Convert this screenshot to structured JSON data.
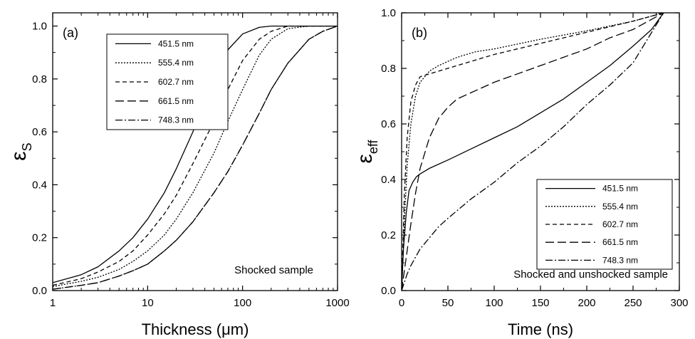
{
  "chart_data": [
    {
      "type": "line",
      "panel_label": "(a)",
      "xlabel": "Thickness (μm)",
      "ylabel": "ε",
      "ylabel_sub": "S",
      "xscale": "log",
      "xlim": [
        1,
        1000
      ],
      "ylim": [
        0.0,
        1.05
      ],
      "xticks": [
        1,
        10,
        100,
        1000
      ],
      "xtick_labels": [
        "1",
        "10",
        "100",
        "1000"
      ],
      "yticks": [
        0.0,
        0.2,
        0.4,
        0.6,
        0.8,
        1.0
      ],
      "ytick_labels": [
        "0.0",
        "0.2",
        "0.4",
        "0.6",
        "0.8",
        "1.0"
      ],
      "annotation": "Shocked sample",
      "legend_position": "top-left",
      "grid": false,
      "series": [
        {
          "name": "451.5 nm",
          "dash": "",
          "x": [
            1,
            2,
            3,
            5,
            7,
            10,
            15,
            20,
            30,
            40,
            50,
            70,
            100,
            150,
            200,
            300,
            500,
            1000
          ],
          "y": [
            0.03,
            0.06,
            0.09,
            0.15,
            0.2,
            0.27,
            0.37,
            0.46,
            0.6,
            0.72,
            0.8,
            0.91,
            0.97,
            0.995,
            1.0,
            1.0,
            1.0,
            1.0
          ]
        },
        {
          "name": "555.4 nm",
          "dash": "2,2",
          "x": [
            1,
            2,
            3,
            5,
            7,
            10,
            15,
            20,
            30,
            50,
            70,
            100,
            150,
            200,
            300,
            500,
            1000
          ],
          "y": [
            0.015,
            0.035,
            0.05,
            0.08,
            0.11,
            0.15,
            0.21,
            0.27,
            0.37,
            0.52,
            0.64,
            0.76,
            0.89,
            0.95,
            0.99,
            1.0,
            1.0
          ]
        },
        {
          "name": "602.7 nm",
          "dash": "6,4",
          "x": [
            1,
            2,
            3,
            5,
            7,
            10,
            15,
            20,
            30,
            50,
            70,
            100,
            150,
            200,
            300,
            500,
            1000
          ],
          "y": [
            0.02,
            0.045,
            0.07,
            0.11,
            0.15,
            0.21,
            0.29,
            0.36,
            0.48,
            0.64,
            0.76,
            0.87,
            0.95,
            0.98,
            1.0,
            1.0,
            1.0
          ]
        },
        {
          "name": "661.5 nm",
          "dash": "12,5",
          "x": [
            1,
            2,
            3,
            5,
            7,
            10,
            15,
            20,
            30,
            50,
            70,
            100,
            150,
            200,
            300,
            500,
            700,
            1000
          ],
          "y": [
            0.005,
            0.02,
            0.03,
            0.055,
            0.075,
            0.1,
            0.15,
            0.19,
            0.26,
            0.37,
            0.45,
            0.55,
            0.67,
            0.76,
            0.86,
            0.95,
            0.98,
            1.0
          ]
        },
        {
          "name": "748.3 nm",
          "dash": "10,3,2,3",
          "x": [
            1,
            2,
            3,
            5,
            7,
            10,
            15,
            20,
            30,
            50,
            70,
            100,
            150,
            200,
            300,
            500,
            700,
            1000
          ],
          "y": [
            0.005,
            0.02,
            0.03,
            0.055,
            0.075,
            0.1,
            0.15,
            0.19,
            0.26,
            0.37,
            0.45,
            0.55,
            0.67,
            0.76,
            0.86,
            0.95,
            0.98,
            1.0
          ]
        }
      ]
    },
    {
      "type": "line",
      "panel_label": "(b)",
      "xlabel": "Time (ns)",
      "ylabel": "ε",
      "ylabel_sub": "eff",
      "xscale": "linear",
      "xlim": [
        0,
        300
      ],
      "ylim": [
        0.0,
        1.0
      ],
      "xticks": [
        0,
        50,
        100,
        150,
        200,
        250,
        300
      ],
      "xtick_labels": [
        "0",
        "50",
        "100",
        "150",
        "200",
        "250",
        "300"
      ],
      "yticks": [
        0.0,
        0.2,
        0.4,
        0.6,
        0.8,
        1.0
      ],
      "ytick_labels": [
        "0.0",
        "0.2",
        "0.4",
        "0.6",
        "0.8",
        "1.0"
      ],
      "annotation": "Shocked and unshocked sample",
      "legend_position": "bottom-right",
      "grid": false,
      "series": [
        {
          "name": "451.5 nm",
          "dash": "",
          "x": [
            0,
            2,
            5,
            8,
            12,
            16,
            20,
            30,
            50,
            75,
            100,
            125,
            150,
            175,
            200,
            225,
            250,
            270,
            283
          ],
          "y": [
            0.0,
            0.15,
            0.28,
            0.36,
            0.39,
            0.41,
            0.42,
            0.44,
            0.47,
            0.51,
            0.55,
            0.59,
            0.64,
            0.69,
            0.75,
            0.81,
            0.88,
            0.94,
            1.0
          ]
        },
        {
          "name": "555.4 nm",
          "dash": "2,2",
          "x": [
            0,
            3,
            6,
            10,
            15,
            20,
            30,
            40,
            60,
            80,
            100,
            150,
            200,
            250,
            283
          ],
          "y": [
            0.0,
            0.25,
            0.45,
            0.6,
            0.7,
            0.75,
            0.79,
            0.81,
            0.84,
            0.86,
            0.87,
            0.905,
            0.935,
            0.97,
            1.0
          ]
        },
        {
          "name": "602.7 nm",
          "dash": "6,4",
          "x": [
            0,
            3,
            6,
            10,
            15,
            20,
            30,
            40,
            60,
            80,
            100,
            150,
            200,
            250,
            283
          ],
          "y": [
            0.0,
            0.35,
            0.55,
            0.68,
            0.74,
            0.77,
            0.78,
            0.79,
            0.81,
            0.83,
            0.85,
            0.89,
            0.93,
            0.97,
            1.0
          ]
        },
        {
          "name": "661.5 nm",
          "dash": "12,5",
          "x": [
            0,
            5,
            10,
            15,
            20,
            30,
            40,
            50,
            60,
            80,
            100,
            125,
            150,
            175,
            200,
            225,
            250,
            283
          ],
          "y": [
            0.0,
            0.12,
            0.24,
            0.35,
            0.44,
            0.55,
            0.62,
            0.66,
            0.69,
            0.72,
            0.75,
            0.78,
            0.81,
            0.84,
            0.87,
            0.91,
            0.94,
            1.0
          ]
        },
        {
          "name": "748.3 nm",
          "dash": "10,3,2,3",
          "x": [
            0,
            3,
            6,
            10,
            15,
            20,
            30,
            40,
            50,
            75,
            100,
            125,
            150,
            175,
            200,
            225,
            250,
            283
          ],
          "y": [
            0.0,
            0.03,
            0.06,
            0.09,
            0.12,
            0.15,
            0.19,
            0.23,
            0.26,
            0.33,
            0.39,
            0.46,
            0.52,
            0.59,
            0.67,
            0.74,
            0.82,
            1.0
          ]
        }
      ]
    }
  ]
}
